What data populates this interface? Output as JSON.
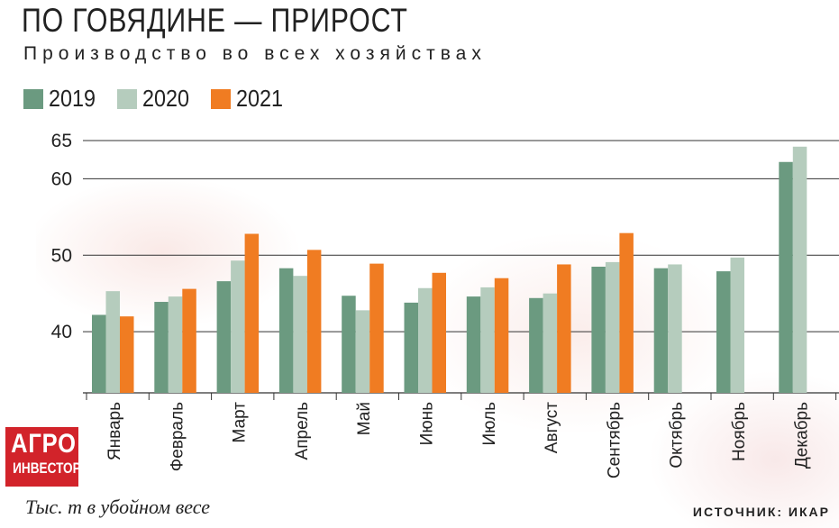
{
  "title": "ПО ГОВЯДИНЕ — ПРИРОСТ",
  "subtitle": "Производство во всех хозяйствах",
  "units_note": "Тыс. т в убойном весе",
  "source": "ИСТОЧНИК: ИКАР",
  "logo": {
    "line1": "АГРО",
    "line2": "ИНВЕСТОР"
  },
  "colors": {
    "2019": "#6b9a80",
    "2020": "#b5ccbd",
    "2021": "#f07c22",
    "grid": "#333333"
  },
  "chart_data": {
    "type": "bar",
    "categories": [
      "Январь",
      "Февраль",
      "Март",
      "Апрель",
      "Май",
      "Июнь",
      "Июль",
      "Август",
      "Сентябрь",
      "Октябрь",
      "Ноябрь",
      "Декабрь"
    ],
    "series": [
      {
        "name": "2019",
        "values": [
          42.2,
          43.9,
          46.6,
          48.3,
          44.7,
          43.8,
          44.6,
          44.4,
          48.5,
          48.3,
          47.9,
          62.2
        ]
      },
      {
        "name": "2020",
        "values": [
          45.3,
          44.6,
          49.3,
          47.3,
          42.8,
          45.7,
          45.8,
          45.0,
          49.1,
          48.8,
          49.7,
          64.2
        ]
      },
      {
        "name": "2021",
        "values": [
          42.0,
          45.6,
          52.8,
          50.7,
          48.9,
          47.7,
          47.0,
          48.8,
          52.9,
          null,
          null,
          null
        ]
      }
    ],
    "yticks": [
      40,
      50,
      60,
      65
    ],
    "ylim": [
      32,
      65
    ],
    "legend": "top-left",
    "grid": true
  }
}
